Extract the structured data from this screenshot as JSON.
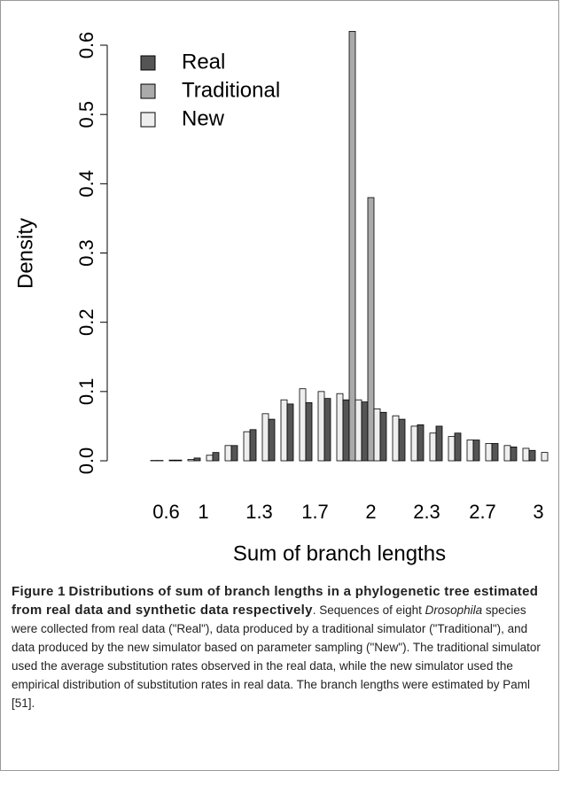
{
  "chart_data": {
    "type": "bar",
    "x_label": "Sum of branch lengths",
    "y_label": "Density",
    "categories": [
      null,
      "0.6",
      null,
      "1",
      null,
      null,
      "1.3",
      null,
      null,
      "1.7",
      null,
      null,
      "2",
      null,
      null,
      "2.3",
      null,
      null,
      "2.7",
      null,
      null,
      "3"
    ],
    "series": [
      {
        "name": "Real",
        "color": "#555555",
        "values": [
          0,
          0.0005,
          0.001,
          0.004,
          0.012,
          0.022,
          0.045,
          0.06,
          0.082,
          0.084,
          0.09,
          0.088,
          0.085,
          0.07,
          0.06,
          0.052,
          0.05,
          0.04,
          0.03,
          0.025,
          0.02,
          0.015
        ]
      },
      {
        "name": "Traditional",
        "color": "#aaaaaa",
        "values": [
          0,
          0,
          0,
          0,
          0,
          0,
          0,
          0,
          0,
          0,
          0,
          0.62,
          0.38,
          0,
          0,
          0,
          0,
          0,
          0,
          0,
          0,
          0
        ]
      },
      {
        "name": "New",
        "color": "#eeeeee",
        "values": [
          0.0005,
          0.001,
          0.002,
          0.008,
          0.022,
          0.042,
          0.068,
          0.088,
          0.104,
          0.1,
          0.097,
          0.088,
          0.075,
          0.065,
          0.05,
          0.04,
          0.035,
          0.03,
          0.025,
          0.022,
          0.018,
          0.012
        ]
      }
    ],
    "ylim": [
      0,
      0.6
    ],
    "yticks": [
      {
        "value": 0,
        "label": "0.0"
      },
      0.1,
      0.2,
      0.3,
      0.4,
      0.5,
      0.6
    ],
    "legend": "top-left"
  },
  "caption": {
    "label": "Figure 1",
    "title": "Distributions of sum of branch lengths in a phylogenetic tree estimated from real data and synthetic data respectively",
    "text_before": ". Sequences of eight ",
    "italic": "Drosophila",
    "text_after": " species were collected from real data (\"Real\"), data produced by a traditional simulator (\"Traditional\"), and data produced by the new simulator based on parameter sampling (\"New\"). The traditional simulator used the average substitution rates observed in the real data, while the new simulator used the empirical distribution of substitution rates in real data. The branch lengths were estimated by Paml [51]."
  }
}
